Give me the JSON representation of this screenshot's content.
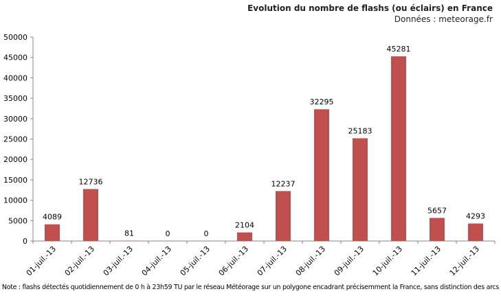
{
  "chart_data": {
    "type": "bar",
    "title": "Evolution du nombre de flashs (ou éclairs)  en France",
    "subtitle": "Données : meteorage.fr",
    "note": "Note : flashs détectés quotidiennement de 0 h à 23h59 TU par le réseau Météorage sur un polygone encadrant précisemment la France, sans distinction des arcs",
    "categories": [
      "01-juil.-13",
      "02-juil.-13",
      "03-juil.-13",
      "04-juil.-13",
      "05-juil.-13",
      "06-juil.-13",
      "07-juil.-13",
      "08-juil.-13",
      "09-juil.-13",
      "10-juil.-13",
      "11-juil.-13",
      "12-juil.-13"
    ],
    "values": [
      4089,
      12736,
      81,
      0,
      0,
      2104,
      12237,
      32295,
      25183,
      45281,
      5657,
      4293
    ],
    "xlabel": "",
    "ylabel": "",
    "ylim": [
      0,
      50000
    ],
    "yticks": [
      0,
      5000,
      10000,
      15000,
      20000,
      25000,
      30000,
      35000,
      40000,
      45000,
      50000
    ],
    "grid": false,
    "legend": "none",
    "data_labels": true,
    "bar_color": "#c0504d"
  }
}
